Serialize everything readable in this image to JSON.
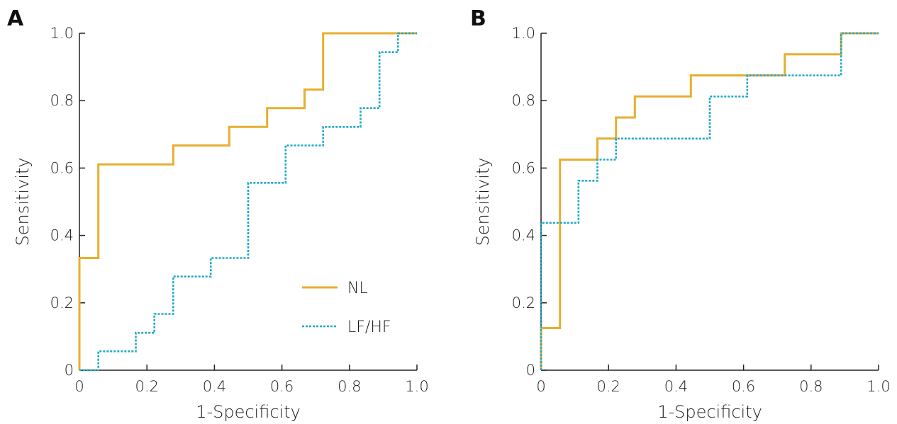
{
  "colors": {
    "nl": "#E8AE2E",
    "lfhf": "#1EA8C8",
    "axis": "#222222"
  },
  "chart_data": [
    {
      "type": "line",
      "panel": "A",
      "xlabel": "1-Specificity",
      "ylabel": "Sensitivity",
      "xlim": [
        0,
        1
      ],
      "ylim": [
        0,
        1
      ],
      "xticks": [
        "0",
        "0.2",
        "0.4",
        "0.6",
        "0.8",
        "1.0"
      ],
      "yticks": [
        "0",
        "0.2",
        "0.4",
        "0.6",
        "0.8",
        "1.0"
      ],
      "grid": false,
      "legend": "bottom-right",
      "series": [
        {
          "name": "NL",
          "style": "solid",
          "x": [
            0,
            0,
            0.056,
            0.056,
            0.278,
            0.278,
            0.444,
            0.444,
            0.556,
            0.556,
            0.667,
            0.667,
            0.722,
            0.722,
            1.0
          ],
          "y": [
            0,
            0.333,
            0.333,
            0.611,
            0.611,
            0.667,
            0.667,
            0.722,
            0.722,
            0.778,
            0.778,
            0.833,
            0.833,
            1.0,
            1.0
          ]
        },
        {
          "name": "LF/HF",
          "style": "dotted",
          "x": [
            0,
            0.056,
            0.056,
            0.167,
            0.167,
            0.222,
            0.222,
            0.278,
            0.278,
            0.389,
            0.389,
            0.5,
            0.5,
            0.611,
            0.611,
            0.722,
            0.722,
            0.833,
            0.833,
            0.889,
            0.889,
            0.944,
            0.944,
            1.0
          ],
          "y": [
            0,
            0,
            0.056,
            0.056,
            0.111,
            0.111,
            0.167,
            0.167,
            0.278,
            0.278,
            0.333,
            0.333,
            0.556,
            0.556,
            0.667,
            0.667,
            0.722,
            0.722,
            0.778,
            0.778,
            0.944,
            0.944,
            1.0,
            1.0
          ]
        }
      ]
    },
    {
      "type": "line",
      "panel": "B",
      "xlabel": "1-Specificity",
      "ylabel": "Sensitivity",
      "xlim": [
        0,
        1
      ],
      "ylim": [
        0,
        1
      ],
      "xticks": [
        "0",
        "0.2",
        "0.4",
        "0.6",
        "0.8",
        "1.0"
      ],
      "yticks": [
        "0",
        "0.2",
        "0.4",
        "0.6",
        "0.8",
        "1.0"
      ],
      "grid": false,
      "series": [
        {
          "name": "NL",
          "style": "solid",
          "x": [
            0,
            0,
            0.056,
            0.056,
            0.167,
            0.167,
            0.222,
            0.222,
            0.278,
            0.278,
            0.444,
            0.444,
            0.722,
            0.722,
            0.889,
            0.889,
            1.0
          ],
          "y": [
            0,
            0.125,
            0.125,
            0.625,
            0.625,
            0.6875,
            0.6875,
            0.75,
            0.75,
            0.8125,
            0.8125,
            0.875,
            0.875,
            0.9375,
            0.9375,
            1.0,
            1.0
          ]
        },
        {
          "name": "LF/HF",
          "style": "dotted",
          "x": [
            0,
            0,
            0.111,
            0.111,
            0.167,
            0.167,
            0.222,
            0.222,
            0.5,
            0.5,
            0.611,
            0.611,
            0.889,
            0.889,
            1.0
          ],
          "y": [
            0,
            0.4375,
            0.4375,
            0.5625,
            0.5625,
            0.625,
            0.625,
            0.6875,
            0.6875,
            0.8125,
            0.8125,
            0.875,
            0.875,
            1.0,
            1.0
          ]
        }
      ]
    }
  ]
}
